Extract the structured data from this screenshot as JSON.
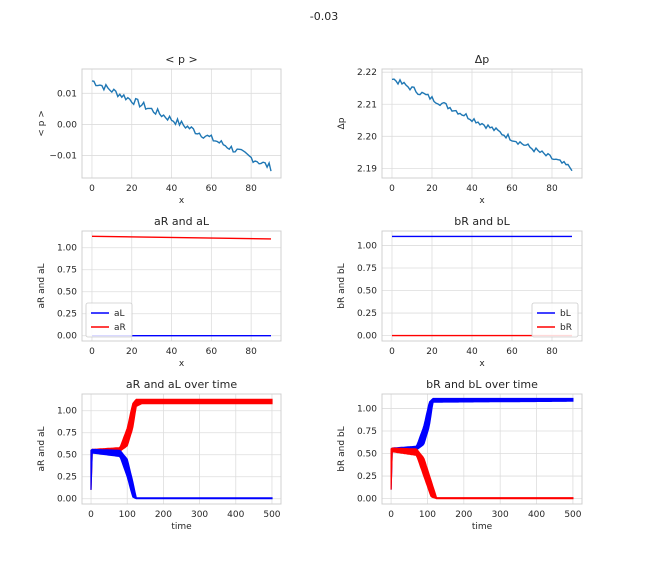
{
  "figure": {
    "suptitle": "-0.03"
  },
  "chart_data": [
    {
      "id": "mean-p",
      "type": "line",
      "title": "< p >",
      "xlabel": "x",
      "ylabel": "< p >",
      "xlim": [
        -5,
        95
      ],
      "ylim": [
        -0.0172,
        0.0178
      ],
      "xticks": [
        0,
        20,
        40,
        60,
        80
      ],
      "xtick_labels": [
        "0",
        "20",
        "40",
        "60",
        "80"
      ],
      "yticks": [
        -0.01,
        0.0,
        0.01
      ],
      "ytick_labels": [
        "−0.01",
        "0.00",
        "0.01"
      ],
      "grid": true,
      "series": [
        {
          "color": "#1f77b4",
          "trend": [
            [
              0,
              0.014
            ],
            [
              90,
              -0.0138
            ]
          ],
          "jitter": 0.0012,
          "n": 91
        }
      ]
    },
    {
      "id": "delta-p",
      "type": "line",
      "title": "Δp",
      "xlabel": "x",
      "ylabel": "Δp",
      "xlim": [
        -5,
        95
      ],
      "ylim": [
        2.187,
        2.221
      ],
      "xticks": [
        0,
        20,
        40,
        60,
        80
      ],
      "xtick_labels": [
        "0",
        "20",
        "40",
        "60",
        "80"
      ],
      "yticks": [
        2.19,
        2.2,
        2.21,
        2.22
      ],
      "ytick_labels": [
        "2.19",
        "2.20",
        "2.21",
        "2.22"
      ],
      "grid": true,
      "series": [
        {
          "color": "#1f77b4",
          "trend": [
            [
              0,
              2.218
            ],
            [
              90,
              2.19
            ]
          ],
          "jitter": 0.0009,
          "n": 91
        }
      ]
    },
    {
      "id": "aR-aL",
      "type": "line",
      "title": "aR and aL",
      "xlabel": "x",
      "ylabel": "aR and aL",
      "xlim": [
        -5,
        95
      ],
      "ylim": [
        -0.06,
        1.19
      ],
      "xticks": [
        0,
        20,
        40,
        60,
        80
      ],
      "xtick_labels": [
        "0",
        "20",
        "40",
        "60",
        "80"
      ],
      "yticks": [
        0.0,
        0.25,
        0.5,
        0.75,
        1.0
      ],
      "ytick_labels": [
        "0.00",
        "0.25",
        "0.50",
        "0.75",
        "1.00"
      ],
      "grid": true,
      "legend": {
        "placement": "lower-left",
        "entries": [
          {
            "label": "aL",
            "color": "#0000ff"
          },
          {
            "label": "aR",
            "color": "#ff0000"
          }
        ]
      },
      "series": [
        {
          "name": "aL",
          "color": "#0000ff",
          "trend": [
            [
              0,
              0.0
            ],
            [
              90,
              0.0
            ]
          ],
          "n": 2
        },
        {
          "name": "aR",
          "color": "#ff0000",
          "trend": [
            [
              0,
              1.13
            ],
            [
              90,
              1.1
            ]
          ],
          "n": 2
        }
      ]
    },
    {
      "id": "bR-bL",
      "type": "line",
      "title": "bR and bL",
      "xlabel": "x",
      "ylabel": "bR and bL",
      "xlim": [
        -5,
        95
      ],
      "ylim": [
        -0.06,
        1.16
      ],
      "xticks": [
        0,
        20,
        40,
        60,
        80
      ],
      "xtick_labels": [
        "0",
        "20",
        "40",
        "60",
        "80"
      ],
      "yticks": [
        0.0,
        0.25,
        0.5,
        0.75,
        1.0
      ],
      "ytick_labels": [
        "0.00",
        "0.25",
        "0.50",
        "0.75",
        "1.00"
      ],
      "grid": true,
      "legend": {
        "placement": "lower-right",
        "entries": [
          {
            "label": "bL",
            "color": "#0000ff"
          },
          {
            "label": "bR",
            "color": "#ff0000"
          }
        ]
      },
      "series": [
        {
          "name": "bL",
          "color": "#0000ff",
          "trend": [
            [
              0,
              1.1
            ],
            [
              90,
              1.1
            ]
          ],
          "n": 2
        },
        {
          "name": "bR",
          "color": "#ff0000",
          "trend": [
            [
              0,
              0.0
            ],
            [
              90,
              0.0
            ]
          ],
          "n": 2
        }
      ]
    },
    {
      "id": "aR-aL-time",
      "type": "line",
      "title": "aR and aL over time",
      "xlabel": "time",
      "ylabel": "aR and aL",
      "xlim": [
        -25,
        525
      ],
      "ylim": [
        -0.06,
        1.19
      ],
      "xticks": [
        0,
        100,
        200,
        300,
        400,
        500
      ],
      "xtick_labels": [
        "0",
        "100",
        "200",
        "300",
        "400",
        "500"
      ],
      "yticks": [
        0.0,
        0.25,
        0.5,
        0.75,
        1.0
      ],
      "ytick_labels": [
        "0.00",
        "0.25",
        "0.50",
        "0.75",
        "1.00"
      ],
      "grid": true,
      "series": [
        {
          "name": "aR",
          "color": "#ff0000",
          "band": [
            [
              0,
              0.1,
              0.55
            ],
            [
              3,
              0.52,
              0.56
            ],
            [
              80,
              0.54,
              0.58
            ],
            [
              100,
              0.6,
              0.8
            ],
            [
              115,
              0.8,
              1.08
            ],
            [
              125,
              1.05,
              1.13
            ],
            [
              140,
              1.08,
              1.13
            ],
            [
              500,
              1.08,
              1.13
            ]
          ]
        },
        {
          "name": "aL",
          "color": "#0000ff",
          "band": [
            [
              0,
              0.1,
              0.55
            ],
            [
              3,
              0.52,
              0.56
            ],
            [
              80,
              0.48,
              0.55
            ],
            [
              100,
              0.25,
              0.45
            ],
            [
              115,
              0.02,
              0.2
            ],
            [
              125,
              0.0,
              0.01
            ],
            [
              500,
              0.0,
              0.01
            ]
          ]
        }
      ]
    },
    {
      "id": "bR-bL-time",
      "type": "line",
      "title": "bR and bL over time",
      "xlabel": "time",
      "ylabel": "bR and bL",
      "xlim": [
        -25,
        525
      ],
      "ylim": [
        -0.06,
        1.16
      ],
      "xticks": [
        0,
        100,
        200,
        300,
        400,
        500
      ],
      "xtick_labels": [
        "0",
        "100",
        "200",
        "300",
        "400",
        "500"
      ],
      "yticks": [
        0.0,
        0.25,
        0.5,
        0.75,
        1.0
      ],
      "ytick_labels": [
        "0.00",
        "0.25",
        "0.50",
        "0.75",
        "1.00"
      ],
      "grid": true,
      "series": [
        {
          "name": "bL",
          "color": "#0000ff",
          "band": [
            [
              0,
              0.1,
              0.55
            ],
            [
              3,
              0.52,
              0.56
            ],
            [
              70,
              0.54,
              0.58
            ],
            [
              90,
              0.6,
              0.8
            ],
            [
              105,
              0.8,
              1.07
            ],
            [
              115,
              1.07,
              1.11
            ],
            [
              500,
              1.08,
              1.11
            ]
          ]
        },
        {
          "name": "bR",
          "color": "#ff0000",
          "band": [
            [
              0,
              0.1,
              0.55
            ],
            [
              3,
              0.52,
              0.56
            ],
            [
              70,
              0.48,
              0.55
            ],
            [
              90,
              0.25,
              0.45
            ],
            [
              110,
              0.02,
              0.2
            ],
            [
              125,
              0.0,
              0.01
            ],
            [
              500,
              0.0,
              0.01
            ]
          ]
        }
      ]
    }
  ]
}
